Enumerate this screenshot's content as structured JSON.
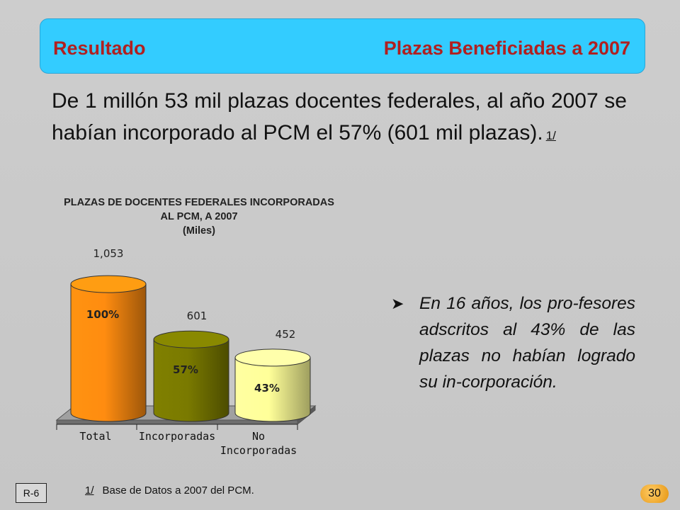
{
  "header": {
    "left": "Resultado",
    "right": "Plazas Beneficiadas a 2007"
  },
  "intro": {
    "text": "De 1 millón 53 mil  plazas docentes federales, al año 2007 se habían incorporado al PCM el 57% (601 mil plazas).",
    "ref": "1/"
  },
  "chart_data": {
    "type": "bar",
    "title": "PLAZAS DE DOCENTES FEDERALES INCORPORADAS AL PCM, A 2007",
    "subtitle": "(Miles)",
    "categories": [
      "Total",
      "Incorporadas",
      "No Incorporadas"
    ],
    "values": [
      1053,
      601,
      452
    ],
    "value_labels": [
      "1,053",
      "601",
      "452"
    ],
    "percent_labels": [
      "100%",
      "57%",
      "43%"
    ],
    "colors": [
      "#ff8c10",
      "#7a7a00",
      "#ffff99"
    ],
    "ylim": [
      0,
      1100
    ],
    "grid": false,
    "legend": "none"
  },
  "bullet": {
    "text": "En 16 años, los pro-fesores adscritos al 43% de las plazas no habían logrado su in-corporación."
  },
  "footnote": {
    "mark": "1/",
    "text": "Base de Datos a 2007 del PCM."
  },
  "slide_code": "R-6",
  "page_number": "30"
}
